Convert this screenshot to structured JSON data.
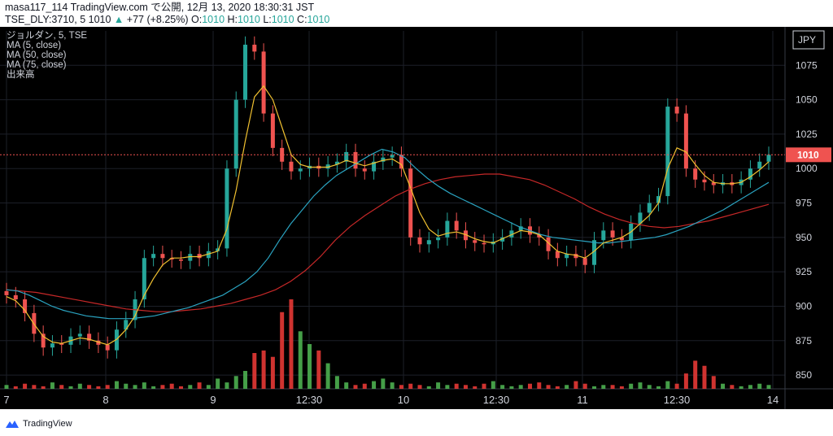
{
  "header": {
    "line1": "masa117_114 TradingView.com で公開, 12月 13, 2020 18:30:31 JST",
    "symbol": "TSE_DLY:3710, 5",
    "last": "1010",
    "change_arrow": "▲",
    "change": "+77 (+8.25%)",
    "o_label": "O:",
    "o_val": "1010",
    "h_label": "H:",
    "h_val": "1010",
    "l_label": "L:",
    "l_val": "1010",
    "c_label": "C:",
    "c_val": "1010"
  },
  "legend": {
    "title": "ジョルダン, 5, TSE",
    "ma5": "MA (5, close)",
    "ma50": "MA (50, close)",
    "ma75": "MA (75, close)",
    "volume": "出来高"
  },
  "brand": {
    "name": "TradingView"
  },
  "colors": {
    "background": "#000000",
    "up": "#26a69a",
    "down": "#ef5350",
    "ma5": "#f0c030",
    "ma50": "#2aa3c0",
    "ma75": "#c62828",
    "vol_up": "#4caf50",
    "vol_down": "#e53935",
    "price_tag": "#ef5350"
  },
  "chart_data": {
    "type": "candlestick",
    "currency": "JPY",
    "last_price_label": "1010",
    "ylim": [
      840,
      1100
    ],
    "y_ticks": [
      850,
      875,
      900,
      925,
      950,
      975,
      1000,
      1025,
      1050,
      1075
    ],
    "x_ticks": [
      "7",
      "8",
      "9",
      "12:30",
      "10",
      "12:30",
      "11",
      "12:30",
      "14"
    ],
    "ohlc_series": [
      908,
      905,
      895,
      880,
      870,
      873,
      872,
      878,
      880,
      875,
      872,
      868,
      883,
      890,
      905,
      935,
      938,
      935,
      934,
      933,
      938,
      935,
      940,
      942,
      1000,
      1050,
      1090,
      1085,
      1040,
      1015,
      1005,
      998,
      1000,
      1002,
      1000,
      1003,
      1005,
      1012,
      1000,
      998,
      1005,
      1008,
      1010,
      1000,
      950,
      945,
      948,
      950,
      962,
      955,
      948,
      946,
      945,
      947,
      950,
      955,
      958,
      952,
      950,
      940,
      935,
      938,
      935,
      930,
      948,
      955,
      950,
      948,
      960,
      968,
      975,
      980,
      1045,
      1040,
      1000,
      992,
      990,
      988,
      990,
      988,
      992,
      1000,
      1005,
      1010
    ],
    "ma5": [
      907,
      904,
      897,
      887,
      878,
      874,
      873,
      875,
      877,
      876,
      874,
      872,
      876,
      883,
      893,
      908,
      920,
      930,
      935,
      935,
      936,
      936,
      938,
      940,
      956,
      984,
      1020,
      1052,
      1060,
      1050,
      1030,
      1010,
      1003,
      1001,
      1001,
      1001,
      1003,
      1006,
      1004,
      1002,
      1004,
      1006,
      1007,
      1003,
      986,
      968,
      956,
      951,
      953,
      954,
      952,
      949,
      947,
      946,
      949,
      952,
      955,
      954,
      952,
      946,
      940,
      938,
      937,
      935,
      940,
      946,
      948,
      950,
      954,
      960,
      966,
      975,
      1000,
      1015,
      1012,
      1003,
      995,
      990,
      989,
      989,
      990,
      994,
      999,
      1005
    ],
    "ma50": [
      912,
      911,
      908,
      904,
      900,
      897,
      895,
      893,
      892,
      891,
      891,
      891,
      892,
      893,
      895,
      897,
      899,
      902,
      905,
      908,
      913,
      918,
      925,
      935,
      948,
      960,
      970,
      980,
      988,
      995,
      1000,
      1005,
      1010,
      1014,
      1012,
      1008,
      1000,
      993,
      987,
      982,
      978,
      974,
      970,
      966,
      962,
      958,
      955,
      952,
      950,
      949,
      948,
      947,
      946,
      946,
      947,
      948,
      949,
      950,
      952,
      955,
      958,
      962,
      966,
      970,
      975,
      980,
      985,
      990
    ],
    "ma75": [
      912,
      911,
      910,
      908,
      906,
      904,
      902,
      900,
      898,
      897,
      896,
      896,
      897,
      898,
      900,
      902,
      905,
      908,
      912,
      918,
      926,
      936,
      948,
      958,
      966,
      973,
      980,
      985,
      989,
      992,
      994,
      995,
      996,
      996,
      994,
      992,
      988,
      983,
      978,
      972,
      967,
      963,
      960,
      958,
      957,
      958,
      960,
      962,
      965,
      968,
      971,
      974
    ],
    "volume": [
      3,
      2,
      4,
      3,
      2,
      5,
      3,
      2,
      4,
      3,
      2,
      3,
      6,
      4,
      3,
      5,
      2,
      3,
      4,
      2,
      3,
      5,
      3,
      8,
      5,
      10,
      14,
      28,
      30,
      25,
      60,
      70,
      45,
      35,
      30,
      20,
      10,
      5,
      3,
      4,
      6,
      8,
      5,
      3,
      4,
      3,
      2,
      5,
      3,
      4,
      3,
      2,
      4,
      6,
      3,
      2,
      3,
      4,
      5,
      3,
      2,
      3,
      6,
      4,
      2,
      3,
      3,
      2,
      4,
      5,
      3,
      2,
      6,
      4,
      12,
      22,
      18,
      10,
      4,
      3,
      2,
      3,
      4,
      3
    ]
  }
}
